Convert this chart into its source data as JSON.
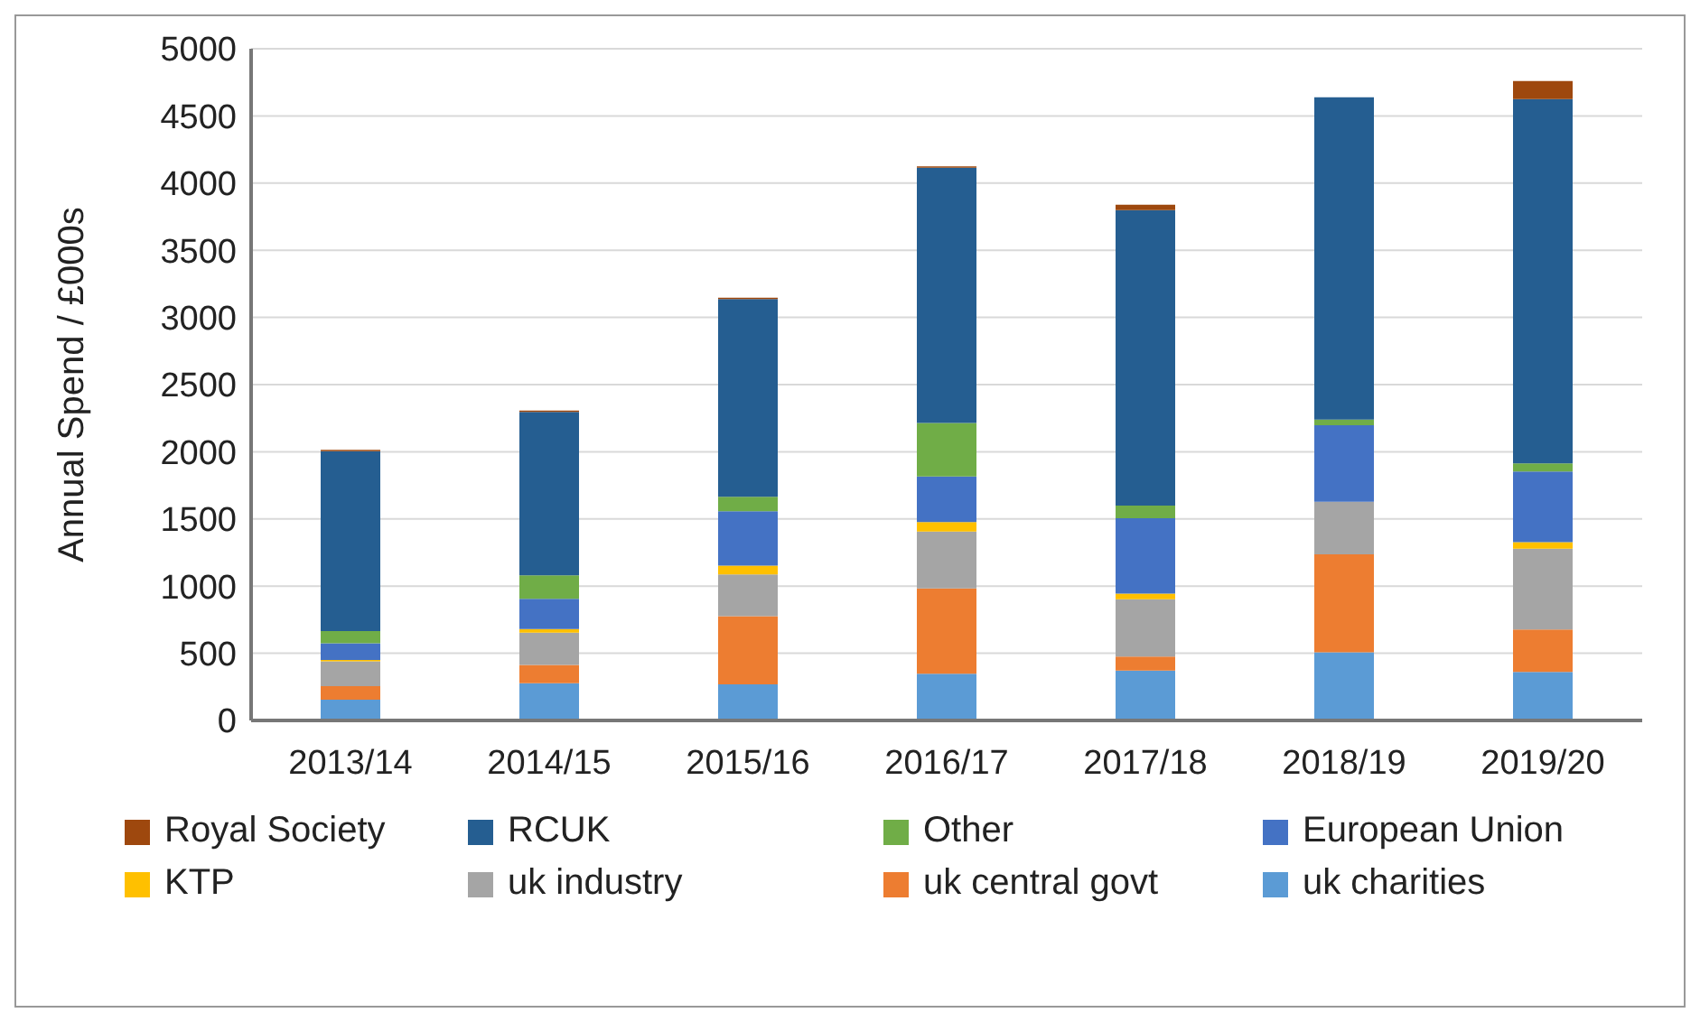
{
  "chart_data": {
    "type": "bar",
    "stacked": true,
    "ylabel": "Annual Spend / £000s",
    "categories": [
      "2013/14",
      "2014/15",
      "2015/16",
      "2016/17",
      "2017/18",
      "2018/19",
      "2019/20"
    ],
    "series": [
      {
        "name": "uk charities",
        "color": "#5b9bd5",
        "values": [
          155,
          277,
          268,
          348,
          372,
          508,
          362
        ]
      },
      {
        "name": "uk central govt",
        "color": "#ed7d31",
        "values": [
          100,
          136,
          508,
          635,
          103,
          729,
          315
        ]
      },
      {
        "name": "uk industry",
        "color": "#a5a5a5",
        "values": [
          185,
          240,
          311,
          423,
          428,
          391,
          602
        ]
      },
      {
        "name": "KTP",
        "color": "#ffc000",
        "values": [
          10,
          28,
          65,
          71,
          42,
          0,
          48
        ]
      },
      {
        "name": "European Union",
        "color": "#4472c4",
        "values": [
          125,
          225,
          405,
          339,
          560,
          569,
          526
        ]
      },
      {
        "name": "Other",
        "color": "#70ad47",
        "values": [
          90,
          174,
          108,
          399,
          94,
          42,
          61
        ]
      },
      {
        "name": "RCUK",
        "color": "#255e91",
        "values": [
          1340,
          1216,
          1472,
          1900,
          2200,
          2400,
          2711
        ]
      },
      {
        "name": "Royal Society",
        "color": "#9e480e",
        "values": [
          10,
          10,
          10,
          10,
          40,
          0,
          134
        ]
      }
    ],
    "ylim": [
      0,
      5000
    ],
    "yticks": [
      0,
      500,
      1000,
      1500,
      2000,
      2500,
      3000,
      3500,
      4000,
      4500,
      5000
    ],
    "grid": "y",
    "legend": "bottom"
  }
}
